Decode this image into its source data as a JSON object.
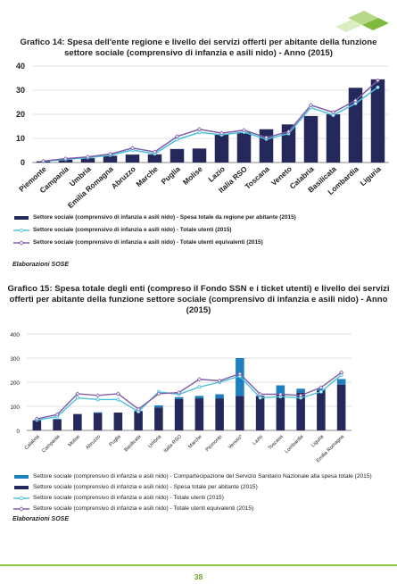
{
  "header": {
    "logo_icon": "sose-green-tiles-logo"
  },
  "footer": {
    "page_number": "38"
  },
  "colors": {
    "bar_dark": "#25285a",
    "bar_blue": "#1d7fbf",
    "line_cyan": "#4bc0dc",
    "line_purple": "#7e5ea8",
    "footer_line": "#8cc63f"
  },
  "chart_data": [
    {
      "type": "bar",
      "title": "Grafico 14: Spesa dell'ente regione e livello dei servizi offerti per abitante della funzione settore sociale (comprensivo di infanzia e asili nido) - Anno (2015)",
      "categories": [
        "Piemonte",
        "Campania",
        "Umbria",
        "Emilia Romagna",
        "Abruzzo",
        "Marche",
        "Puglia",
        "Molise",
        "Lazio",
        "Italia RSO",
        "Toscana",
        "Veneto",
        "Calabria",
        "Basilicata",
        "Lombardia",
        "Liguria"
      ],
      "series": [
        {
          "name": "Settore sociale (comprensivo di infanzia e asili nido) - Spesa totale da regione per abitante (2015)",
          "kind": "bar",
          "values": [
            0.5,
            1.2,
            1.8,
            2.8,
            3.3,
            3.4,
            5.6,
            5.8,
            11.8,
            12.5,
            13.8,
            15.8,
            19.3,
            20.0,
            31.0,
            34.5
          ]
        },
        {
          "name": "Settore sociale (comprensivo di infanzia e asili nido) - Totale utenti  (2015)",
          "kind": "line",
          "values": [
            0.5,
            1.3,
            2.0,
            3.0,
            5.2,
            3.6,
            9.5,
            12.5,
            11.5,
            12.6,
            9.7,
            12.0,
            22.8,
            19.6,
            24.5,
            31.2
          ]
        },
        {
          "name": "Settore sociale (comprensivo di infanzia e asili nido) - Totale utenti equivalenti (2015)",
          "kind": "line",
          "values": [
            0.6,
            1.6,
            2.3,
            3.5,
            6.0,
            4.4,
            10.8,
            13.8,
            12.2,
            13.4,
            10.4,
            12.8,
            23.8,
            20.8,
            25.7,
            34.0
          ]
        }
      ],
      "yticks": [
        "0",
        "10",
        "20",
        "30",
        "40"
      ],
      "ylim": [
        0,
        40
      ],
      "grid": true,
      "legend_position": "bottom",
      "source": "Elaborazioni SOSE"
    },
    {
      "type": "bar",
      "title": "Grafico 15: Spesa totale degli enti (compreso il Fondo SSN e i ticket utenti) e livello dei servizi offerti per abitante della funzione settore sociale (comprensivo di infanzia e asili nido) - Anno (2015)",
      "categories": [
        "Calabria",
        "Campania",
        "Molise",
        "Abruzzo",
        "Puglia",
        "Basilicata",
        "Umbria",
        "Italia RSO",
        "Marche",
        "Piemonte",
        "Veneto*",
        "Lazio",
        "Toscana",
        "Lombardia",
        "Liguria",
        "Emilia Romagna"
      ],
      "series": [
        {
          "name": "Settore sociale (comprensivo di infanzia e asili nido) - Compartecipazione del Servizio Sanitario Nazionale alla spesa totale  (2015)",
          "kind": "bar-stack",
          "values": [
            0,
            3,
            0,
            3,
            0,
            3,
            9,
            8,
            10,
            17,
            157,
            0,
            35,
            16,
            7,
            23
          ]
        },
        {
          "name": "Settore sociale (comprensivo di infanzia e asili nido) - Spesa totale per abitante (2015)",
          "kind": "bar",
          "values": [
            42,
            45,
            68,
            72,
            74,
            79,
            95,
            130,
            133,
            133,
            143,
            143,
            152,
            157,
            165,
            190
          ]
        },
        {
          "name": "Settore sociale (comprensivo di infanzia e asili nido) - Totale utenti  (2015)",
          "kind": "line",
          "values": [
            43,
            57,
            135,
            128,
            128,
            78,
            160,
            150,
            180,
            200,
            225,
            135,
            140,
            135,
            160,
            230
          ]
        },
        {
          "name": "Settore sociale (comprensivo di infanzia e asili nido) - Totale utenti equivalenti (2015)",
          "kind": "line",
          "values": [
            48,
            66,
            152,
            145,
            152,
            88,
            152,
            157,
            212,
            206,
            235,
            150,
            150,
            145,
            178,
            240
          ]
        }
      ],
      "yticks": [
        "0",
        "100",
        "200",
        "300",
        "400"
      ],
      "ylim": [
        0,
        400
      ],
      "grid": true,
      "legend_position": "bottom",
      "source": "Elaborazioni SOSE"
    }
  ]
}
